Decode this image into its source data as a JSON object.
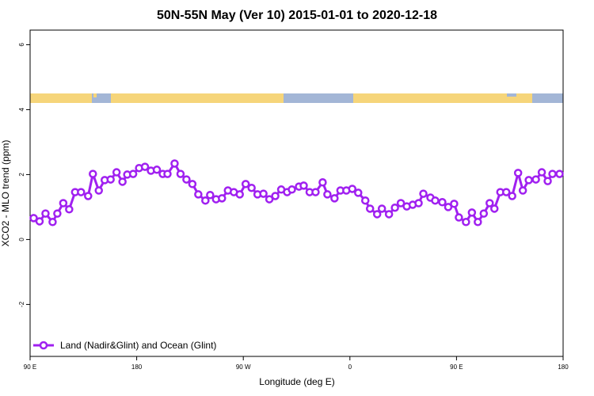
{
  "chart_data": {
    "type": "line",
    "title": "50N-55N May (Ver 10)   2015-01-01 to 2020-12-18",
    "x_label": "Longitude (deg E)",
    "y_label": "XCO2 - MLO trend (ppm)",
    "xlim": [
      90,
      540
    ],
    "ylim": [
      -3.6,
      6.45
    ],
    "xticks": [
      {
        "value": 90,
        "label": "90 E"
      },
      180,
      {
        "value": 270,
        "label": "90 W"
      },
      {
        "value": 360,
        "label": "0"
      },
      {
        "value": 450,
        "label": "90 E"
      },
      {
        "value": 540,
        "label": "180"
      }
    ],
    "yticks": [
      -2,
      0,
      2,
      4,
      6
    ],
    "legend": "bottomleft",
    "x": [
      93,
      98,
      103,
      109,
      113,
      118,
      123,
      128,
      133,
      139,
      143,
      148,
      153,
      158,
      163,
      168,
      172,
      177,
      182,
      187,
      192,
      197,
      202,
      206,
      212,
      217,
      222,
      227,
      232,
      238,
      242,
      247,
      252,
      257,
      262,
      267,
      272,
      277,
      282,
      287,
      292,
      297,
      302,
      307,
      311,
      317,
      321,
      326,
      331,
      337,
      341,
      347,
      352,
      357,
      362,
      367,
      373,
      377,
      383,
      387,
      393,
      398,
      403,
      408,
      413,
      418,
      422,
      428,
      432,
      438,
      443,
      448,
      452,
      458,
      463,
      468,
      473,
      478,
      482,
      487,
      492,
      497,
      502,
      506,
      511,
      517,
      522,
      527,
      531,
      537
    ],
    "series": [
      {
        "name": "Land (Nadir&Glint) and Ocean (Glint)",
        "color": "#a020f0",
        "values": [
          0.66,
          0.56,
          0.8,
          0.54,
          0.8,
          1.12,
          0.93,
          1.46,
          1.46,
          1.34,
          2.02,
          1.51,
          1.83,
          1.85,
          2.07,
          1.78,
          2.0,
          2.02,
          2.2,
          2.24,
          2.12,
          2.15,
          2.02,
          2.02,
          2.34,
          2.02,
          1.85,
          1.71,
          1.39,
          1.2,
          1.37,
          1.24,
          1.27,
          1.51,
          1.46,
          1.39,
          1.71,
          1.59,
          1.39,
          1.41,
          1.24,
          1.34,
          1.54,
          1.46,
          1.54,
          1.63,
          1.66,
          1.46,
          1.46,
          1.76,
          1.39,
          1.27,
          1.51,
          1.51,
          1.56,
          1.44,
          1.2,
          0.95,
          0.78,
          0.95,
          0.78,
          0.98,
          1.12,
          1.02,
          1.07,
          1.12,
          1.41,
          1.29,
          1.2,
          1.15,
          1.0,
          1.1,
          0.68,
          0.54,
          0.83,
          0.54,
          0.8,
          1.12,
          0.95,
          1.46,
          1.46,
          1.34,
          2.05,
          1.51,
          1.83,
          1.85,
          2.07,
          1.8,
          2.02,
          2.02
        ]
      }
    ]
  }
}
